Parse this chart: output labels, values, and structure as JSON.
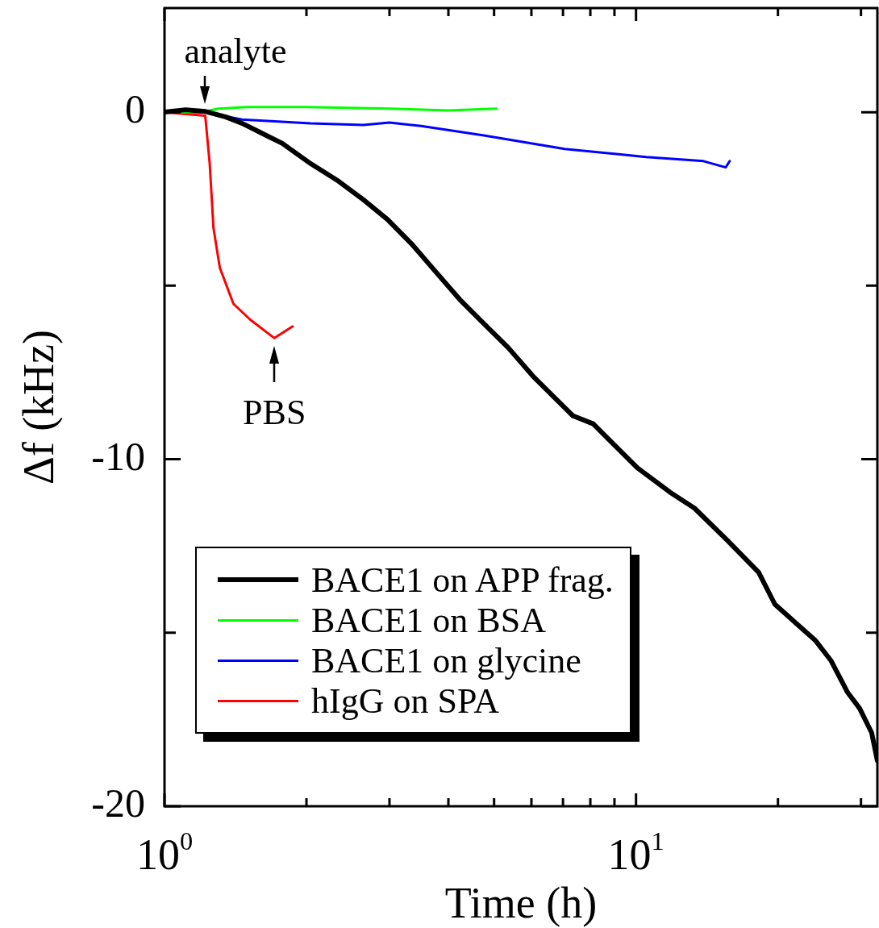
{
  "chart_data": {
    "type": "line",
    "xlabel": "Time (h)",
    "ylabel": "Δf (kHz)",
    "log": "x",
    "grid": false,
    "legend": "bottom left",
    "marker": "none",
    "line_style": "solid",
    "xlim": [
      1,
      32.5
    ],
    "xticks": [
      {
        "value": 1,
        "label": "10$^{0}$"
      },
      {
        "value": 2,
        "label": null
      },
      {
        "value": 3,
        "label": null
      },
      {
        "value": 4,
        "label": null
      },
      {
        "value": 5,
        "label": null
      },
      {
        "value": 6,
        "label": null
      },
      {
        "value": 7,
        "label": null
      },
      {
        "value": 8,
        "label": null
      },
      {
        "value": 9,
        "label": null
      },
      {
        "value": 10,
        "label": "10$^{1}$"
      },
      {
        "value": 20,
        "label": null
      },
      {
        "value": 30,
        "label": null
      }
    ],
    "ylim": [
      -20,
      3
    ],
    "yticks": [
      {
        "value": -20,
        "label": "-20"
      },
      {
        "value": -15,
        "label": null
      },
      {
        "value": -10,
        "label": "-10"
      },
      {
        "value": -5,
        "label": null
      },
      {
        "value": 0,
        "label": "0"
      }
    ],
    "annotations": [
      {
        "text": "analyte",
        "x": 1.22,
        "y": 0
      },
      {
        "text": "PBS",
        "x": 1.71,
        "y": -6.51
      }
    ],
    "series": [
      {
        "name": "BACE1 on APP frag.",
        "color": "#000000",
        "x": [
          1,
          1.108,
          1.223,
          1.35,
          1.46,
          1.644,
          1.778,
          2.04,
          2.34,
          2.64,
          2.97,
          3.34,
          3.76,
          4.23,
          4.76,
          5.36,
          6.04,
          6.79,
          7.35,
          8.11,
          8.95,
          10.07,
          11.8,
          13.3,
          15.6,
          18.2,
          19.7,
          21.7,
          24.0,
          25.9,
          28.1,
          29.8,
          31.6,
          32.5
        ],
        "values": [
          0,
          0.07,
          0.02,
          -0.14,
          -0.32,
          -0.67,
          -0.9,
          -1.48,
          -1.99,
          -2.52,
          -3.09,
          -3.79,
          -4.6,
          -5.4,
          -6.1,
          -6.79,
          -7.6,
          -8.29,
          -8.75,
          -8.98,
          -9.56,
          -10.25,
          -10.95,
          -11.41,
          -12.33,
          -13.26,
          -14.18,
          -14.69,
          -15.22,
          -15.8,
          -16.72,
          -17.18,
          -17.88,
          -18.69
        ]
      },
      {
        "name": "BACE1 on BSA",
        "color": "#00ff00",
        "x": [
          1,
          1.2,
          1.3,
          1.5,
          2,
          3,
          4,
          5.06
        ],
        "values": [
          0,
          0,
          0.1,
          0.15,
          0.15,
          0.1,
          0.05,
          0.1
        ]
      },
      {
        "name": "BACE1 on glycine",
        "color": "#0000ff",
        "x": [
          1,
          1.22,
          1.46,
          2.04,
          2.64,
          3.0,
          3.5,
          4.76,
          7.06,
          10.5,
          13.9,
          15.5,
          15.8
        ],
        "values": [
          0,
          0,
          -0.21,
          -0.32,
          -0.37,
          -0.3,
          -0.4,
          -0.67,
          -1.06,
          -1.29,
          -1.41,
          -1.59,
          -1.41
        ]
      },
      {
        "name": "hIgG on SPA",
        "color": "#ff0000",
        "x": [
          1,
          1.22,
          1.247,
          1.27,
          1.31,
          1.4,
          1.52,
          1.71,
          1.87
        ],
        "values": [
          0,
          -0.1,
          -1.48,
          -3.33,
          -4.48,
          -5.52,
          -5.98,
          -6.51,
          -6.17
        ]
      }
    ]
  }
}
